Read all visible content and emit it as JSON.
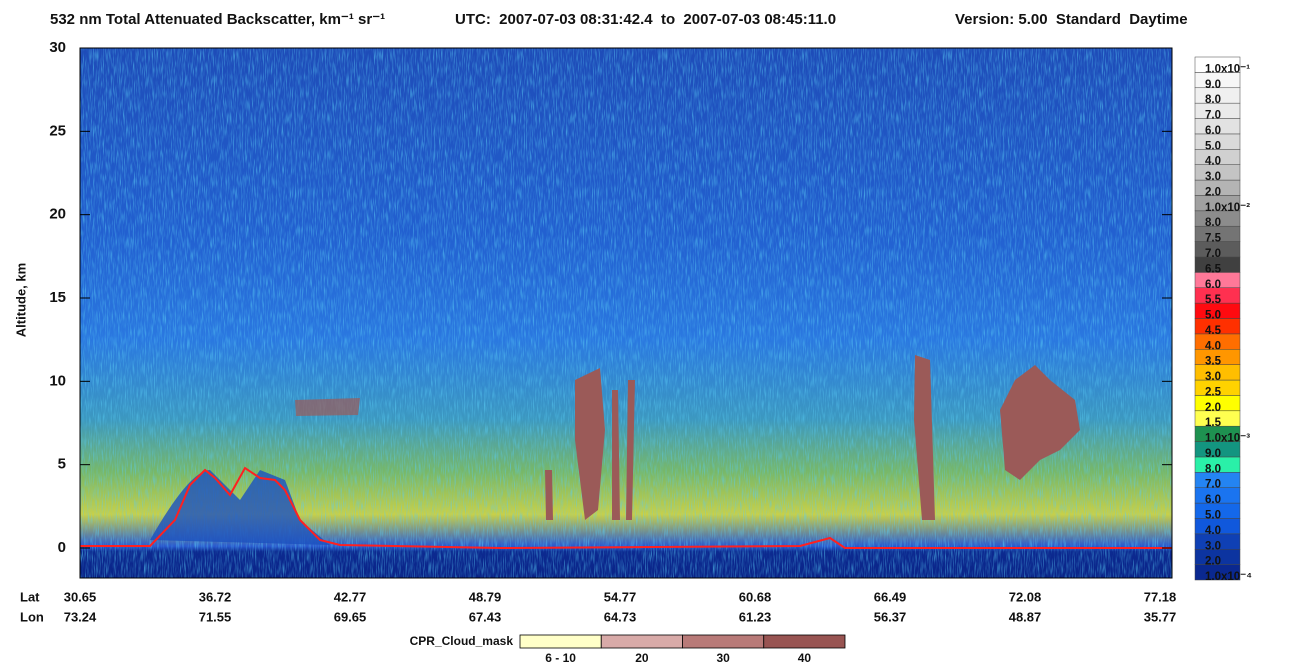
{
  "chart_data": {
    "type": "heatmap",
    "title": "532 nm Total Attenuated Backscatter, km⁻¹ sr⁻¹",
    "subtitle": "UTC:  2007-07-03 08:31:42.4  to  2007-07-03 08:45:11.0",
    "version": "Version: 5.00  Standard  Daytime",
    "y_label": "Altitude, km",
    "ylim": [
      -1.8,
      30
    ],
    "yticks": [
      0,
      5,
      10,
      15,
      20,
      25,
      30
    ],
    "x_rows": [
      {
        "name": "Lat",
        "values": [
          "30.65",
          "36.72",
          "42.77",
          "48.79",
          "54.77",
          "60.68",
          "66.49",
          "72.08",
          "77.18"
        ]
      },
      {
        "name": "Lon",
        "values": [
          "73.24",
          "71.55",
          "69.65",
          "67.43",
          "64.73",
          "61.23",
          "56.37",
          "48.87",
          "35.77"
        ]
      }
    ],
    "colorbar": {
      "labels": [
        "1.0x10⁻⁴",
        "2.0",
        "3.0",
        "4.0",
        "5.0",
        "6.0",
        "7.0",
        "8.0",
        "9.0",
        "1.0x10⁻³",
        "1.5",
        "2.0",
        "2.5",
        "3.0",
        "3.5",
        "4.0",
        "4.5",
        "5.0",
        "5.5",
        "6.0",
        "6.5",
        "7.0",
        "7.5",
        "8.0",
        "1.0x10⁻²",
        "2.0",
        "3.0",
        "4.0",
        "5.0",
        "6.0",
        "7.0",
        "8.0",
        "9.0",
        "1.0x10⁻¹"
      ],
      "colors": [
        "#0a2890",
        "#0c34a0",
        "#0f40b4",
        "#1058dc",
        "#1468ea",
        "#1a74f0",
        "#2484f2",
        "#2af0a8",
        "#139580",
        "#1e9150",
        "#ffff50",
        "#ffff00",
        "#ffd200",
        "#ffbe00",
        "#ff9600",
        "#ff6e00",
        "#ff3000",
        "#ff0a10",
        "#ff3050",
        "#ff7898",
        "#404040",
        "#5c5c5c",
        "#747474",
        "#8c8c8c",
        "#a0a0a0",
        "#b4b4b4",
        "#c4c4c4",
        "#d0d0d0",
        "#dadada",
        "#e2e2e2",
        "#eaeaea",
        "#f0f0f0",
        "#f6f6f6",
        "#ffffff"
      ]
    },
    "cpr_legend": {
      "title": "CPR_Cloud_mask",
      "labels": [
        "6 - 10",
        "20",
        "30",
        "40"
      ],
      "colors": [
        "#ffffc8",
        "#d8aaa8",
        "#b87a78",
        "#985452"
      ]
    }
  }
}
